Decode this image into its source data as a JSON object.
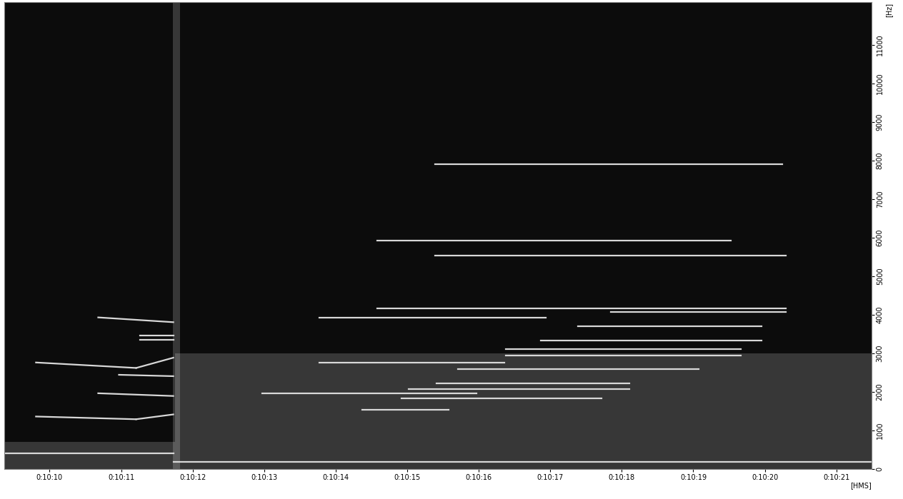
{
  "chart_data": {
    "type": "spectrogram",
    "x_label": "[HMS]",
    "y_label": "[Hz]",
    "xlim": [
      609.37,
      621.49
    ],
    "ylim": [
      0,
      12100
    ],
    "xticks": [
      {
        "value": 610,
        "label": "0:10:10"
      },
      {
        "value": 611,
        "label": "0:10:11"
      },
      {
        "value": 612,
        "label": "0:10:12"
      },
      {
        "value": 613,
        "label": "0:10:13"
      },
      {
        "value": 614,
        "label": "0:10:14"
      },
      {
        "value": 615,
        "label": "0:10:15"
      },
      {
        "value": 616,
        "label": "0:10:16"
      },
      {
        "value": 617,
        "label": "0:10:17"
      },
      {
        "value": 618,
        "label": "0:10:18"
      },
      {
        "value": 619,
        "label": "0:10:19"
      },
      {
        "value": 620,
        "label": "0:10:20"
      },
      {
        "value": 621,
        "label": "0:10:21"
      }
    ],
    "yticks": [
      0,
      1000,
      2000,
      3000,
      4000,
      5000,
      6000,
      7000,
      8000,
      9000,
      10000,
      11000
    ],
    "color": "#d8d8d8",
    "background": "#0c0c0c",
    "bands": [
      {
        "x": [
          611.75,
          621.49
        ],
        "y": [
          0,
          1500
        ]
      },
      {
        "x": [
          611.75,
          621.49
        ],
        "y": [
          1500,
          3000
        ]
      },
      {
        "x": [
          609.37,
          611.75
        ],
        "y": [
          0,
          700
        ]
      },
      {
        "x": [
          611.72,
          611.82
        ],
        "y": [
          0,
          12100
        ]
      }
    ],
    "segments": [
      {
        "x": [
          615.39,
          620.24
        ],
        "y": [
          7900,
          7900
        ]
      },
      {
        "x": [
          614.58,
          619.52
        ],
        "y": [
          5917,
          5917
        ]
      },
      {
        "x": [
          615.39,
          620.29
        ],
        "y": [
          5545,
          5545
        ]
      },
      {
        "x": [
          614.58,
          620.29
        ],
        "y": [
          4163,
          4163
        ]
      },
      {
        "x": [
          613.77,
          616.94
        ],
        "y": [
          3933,
          3933
        ]
      },
      {
        "x": [
          617.85,
          620.29
        ],
        "y": [
          4074,
          4074
        ]
      },
      {
        "x": [
          617.39,
          619.95
        ],
        "y": [
          3702,
          3702
        ]
      },
      {
        "x": [
          616.87,
          619.95
        ],
        "y": [
          3330,
          3330
        ]
      },
      {
        "x": [
          616.38,
          619.66
        ],
        "y": [
          3118,
          3118
        ]
      },
      {
        "x": [
          616.38,
          619.66
        ],
        "y": [
          2941,
          2941
        ]
      },
      {
        "x": [
          613.77,
          616.36
        ],
        "y": [
          2764,
          2764
        ]
      },
      {
        "x": [
          615.71,
          619.08
        ],
        "y": [
          2586,
          2586
        ]
      },
      {
        "x": [
          615.41,
          618.11
        ],
        "y": [
          2214,
          2214
        ]
      },
      {
        "x": [
          615.02,
          618.11
        ],
        "y": [
          2073,
          2073
        ]
      },
      {
        "x": [
          612.97,
          615.97
        ],
        "y": [
          1966,
          1966
        ]
      },
      {
        "x": [
          614.92,
          617.72
        ],
        "y": [
          1842,
          1842
        ]
      },
      {
        "x": [
          614.37,
          615.58
        ],
        "y": [
          1541,
          1541
        ]
      },
      {
        "x": [
          609.81,
          611.21
        ],
        "y": [
          2764,
          2622
        ]
      },
      {
        "x": [
          611.21,
          611.73
        ],
        "y": [
          2622,
          2888
        ]
      },
      {
        "x": [
          610.68,
          611.73
        ],
        "y": [
          3933,
          3809
        ]
      },
      {
        "x": [
          611.26,
          611.73
        ],
        "y": [
          3472,
          3472
        ]
      },
      {
        "x": [
          611.26,
          611.73
        ],
        "y": [
          3348,
          3348
        ]
      },
      {
        "x": [
          610.97,
          611.73
        ],
        "y": [
          2445,
          2409
        ]
      },
      {
        "x": [
          610.68,
          611.73
        ],
        "y": [
          1966,
          1895
        ]
      },
      {
        "x": [
          609.81,
          611.21
        ],
        "y": [
          1363,
          1292
        ]
      },
      {
        "x": [
          611.21,
          611.73
        ],
        "y": [
          1292,
          1417
        ]
      },
      {
        "x": [
          609.37,
          611.73
        ],
        "y": [
          407,
          407
        ]
      },
      {
        "x": [
          611.73,
          621.49
        ],
        "y": [
          195,
          195
        ]
      }
    ]
  }
}
